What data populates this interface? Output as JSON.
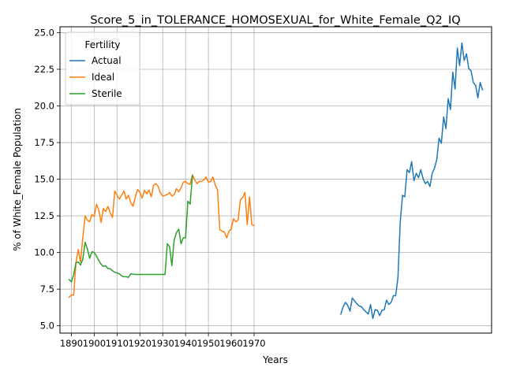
{
  "chart_data": {
    "type": "line",
    "title": "Score_5_in_TOLERANCE_HOMOSEXUAL_for_White_Female_Q2_IQ",
    "xlabel": "Years",
    "ylabel": "% of White_Female Population",
    "xlim": [
      1885,
      2074
    ],
    "ylim": [
      4.5,
      25.4
    ],
    "xticks": [
      1890,
      1900,
      1910,
      1920,
      1930,
      1940,
      1950,
      1960,
      1970
    ],
    "yticks": [
      5.0,
      7.5,
      10.0,
      12.5,
      15.0,
      17.5,
      20.0,
      22.5,
      25.0
    ],
    "ytick_labels": [
      "5.0",
      "7.5",
      "10.0",
      "12.5",
      "15.0",
      "17.5",
      "20.0",
      "22.5",
      "25.0"
    ],
    "grid": true,
    "legend_title": "Fertility",
    "legend_position": "top-left",
    "series": [
      {
        "name": "Actual",
        "color": "#1f77b4",
        "x": [
          2008,
          2009,
          2010,
          2011,
          2012,
          2013,
          2014,
          2015,
          2016,
          2017,
          2018,
          2019,
          2020,
          2021,
          2022,
          2023,
          2024,
          2025,
          2026,
          2027,
          2028,
          2029,
          2030,
          2031,
          2032,
          2033,
          2034,
          2035,
          2036,
          2037,
          2038,
          2039,
          2040,
          2041,
          2042,
          2043,
          2044,
          2045,
          2046,
          2047,
          2048,
          2049,
          2050,
          2051,
          2052,
          2053,
          2054,
          2055,
          2056,
          2057,
          2058,
          2059,
          2060,
          2061,
          2062,
          2063,
          2064,
          2065,
          2066,
          2067,
          2068,
          2069,
          2070
        ],
        "values": [
          5.8,
          6.3,
          6.6,
          6.4,
          6.0,
          6.9,
          6.7,
          6.5,
          6.35,
          6.3,
          6.1,
          5.95,
          5.8,
          6.45,
          5.5,
          6.1,
          6.05,
          5.7,
          6.05,
          6.1,
          6.75,
          6.45,
          6.6,
          7.05,
          7.05,
          8.3,
          12.1,
          13.9,
          13.8,
          15.65,
          15.45,
          16.2,
          14.9,
          15.4,
          15.1,
          15.65,
          15.05,
          14.7,
          14.85,
          14.5,
          15.4,
          15.75,
          16.35,
          17.8,
          17.45,
          19.25,
          18.45,
          20.5,
          19.75,
          22.3,
          21.15,
          23.95,
          22.75,
          24.3,
          23.1,
          23.55,
          22.55,
          22.4,
          21.6,
          21.4,
          20.55,
          21.6,
          21.1
        ]
      },
      {
        "name": "Ideal",
        "color": "#ff7f0e",
        "x": [
          1889,
          1890,
          1891,
          1892,
          1893,
          1894,
          1895,
          1896,
          1897,
          1898,
          1899,
          1900,
          1901,
          1902,
          1903,
          1904,
          1905,
          1906,
          1907,
          1908,
          1909,
          1910,
          1911,
          1912,
          1913,
          1914,
          1915,
          1916,
          1917,
          1918,
          1919,
          1920,
          1921,
          1922,
          1923,
          1924,
          1925,
          1926,
          1927,
          1928,
          1929,
          1930,
          1931,
          1932,
          1933,
          1934,
          1935,
          1936,
          1937,
          1938,
          1939,
          1940,
          1941,
          1942,
          1943,
          1944,
          1945,
          1946,
          1947,
          1948,
          1949,
          1950,
          1951,
          1952,
          1953,
          1954,
          1955,
          1956,
          1957,
          1958,
          1959,
          1960,
          1961,
          1962,
          1963,
          1964,
          1965,
          1966,
          1967,
          1968,
          1969,
          1970
        ],
        "values": [
          6.95,
          7.1,
          7.1,
          9.3,
          10.2,
          9.35,
          11.0,
          12.5,
          12.2,
          12.1,
          12.6,
          12.45,
          13.3,
          12.9,
          12.05,
          13.0,
          12.8,
          13.15,
          12.7,
          12.4,
          14.2,
          13.9,
          13.65,
          13.9,
          14.2,
          13.65,
          13.9,
          13.4,
          13.15,
          13.8,
          14.3,
          14.1,
          13.7,
          14.25,
          14.0,
          14.25,
          13.8,
          14.6,
          14.7,
          14.5,
          14.05,
          13.85,
          13.9,
          13.95,
          14.1,
          13.85,
          13.95,
          14.35,
          14.15,
          14.4,
          14.8,
          14.85,
          14.7,
          14.65,
          15.3,
          14.95,
          14.7,
          14.85,
          14.85,
          14.95,
          15.15,
          14.8,
          14.85,
          15.15,
          14.6,
          14.25,
          11.55,
          11.45,
          11.4,
          11.0,
          11.45,
          11.6,
          12.3,
          12.1,
          12.2,
          13.6,
          13.75,
          14.1,
          11.9,
          13.8,
          11.9,
          11.85
        ]
      },
      {
        "name": "Sterile",
        "color": "#2ca02c",
        "x": [
          1889,
          1890,
          1891,
          1892,
          1893,
          1894,
          1895,
          1896,
          1897,
          1898,
          1899,
          1900,
          1901,
          1902,
          1903,
          1904,
          1905,
          1906,
          1907,
          1908,
          1909,
          1910,
          1911,
          1912,
          1913,
          1914,
          1915,
          1916,
          1917,
          1918,
          1919,
          1920,
          1921,
          1922,
          1923,
          1924,
          1925,
          1926,
          1927,
          1928,
          1929,
          1930,
          1931,
          1932,
          1933,
          1934,
          1935,
          1936,
          1937,
          1938,
          1939,
          1940,
          1941,
          1942,
          1943
        ],
        "values": [
          8.15,
          8.0,
          8.5,
          9.3,
          9.35,
          9.15,
          9.55,
          10.7,
          10.25,
          9.6,
          10.05,
          10.0,
          9.75,
          9.45,
          9.2,
          9.05,
          9.1,
          8.9,
          8.9,
          8.75,
          8.65,
          8.6,
          8.55,
          8.4,
          8.35,
          8.35,
          8.3,
          8.55,
          8.52,
          8.5,
          8.5,
          8.5,
          8.5,
          8.5,
          8.5,
          8.5,
          8.5,
          8.5,
          8.5,
          8.5,
          8.5,
          8.5,
          8.5,
          10.6,
          10.4,
          9.1,
          10.85,
          11.35,
          11.6,
          10.6,
          11.0,
          11.0,
          13.5,
          13.3,
          15.25
        ]
      }
    ]
  }
}
